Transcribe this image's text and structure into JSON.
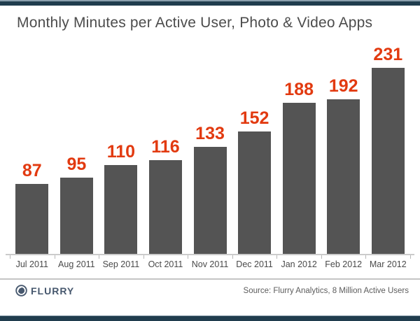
{
  "header": {
    "title": "Monthly Minutes per Active User, Photo & Video Apps"
  },
  "chart_data": {
    "type": "bar",
    "title": "Monthly Minutes per Active User, Photo & Video Apps",
    "categories": [
      "Jul 2011",
      "Aug 2011",
      "Sep 2011",
      "Oct 2011",
      "Nov 2011",
      "Dec 2011",
      "Jan 2012",
      "Feb 2012",
      "Mar 2012"
    ],
    "values": [
      87,
      95,
      110,
      116,
      133,
      152,
      188,
      192,
      231
    ],
    "xlabel": "",
    "ylabel": "",
    "ylim": [
      0,
      250
    ],
    "grid": false,
    "legend": false,
    "bar_color": "#545454",
    "value_label_color": "#e23a10",
    "axis_line_color": "#cbcbcb"
  },
  "footer": {
    "brand": "FLURRY",
    "source": "Source: Flurry Analytics, 8 Million Active Users"
  },
  "frame": {
    "band_color": "#203d4e"
  }
}
